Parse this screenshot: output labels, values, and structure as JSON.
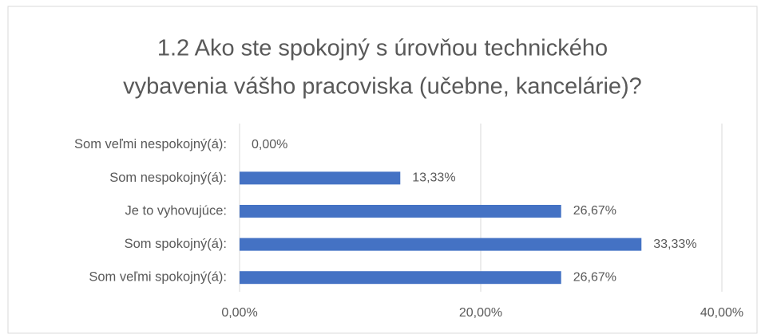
{
  "chart_data": {
    "type": "barh",
    "title": [
      "1.2 Ako ste spokojný s úrovňou technického",
      "vybavenia vášho pracoviska (učebne, kancelárie)?"
    ],
    "categories": [
      "Som veľmi nespokojný(á):",
      "Som nespokojný(á):",
      "Je to vyhovujúce:",
      "Som spokojný(á):",
      "Som veľmi spokojný(á):"
    ],
    "values": [
      0,
      13.33,
      26.67,
      33.33,
      26.67
    ],
    "value_labels": [
      "0,00%",
      "13,33%",
      "26,67%",
      "33,33%",
      "26,67%"
    ],
    "color": "#4472c4",
    "xlim": [
      0,
      40
    ],
    "xticks": [
      {
        "value": 0,
        "label": "0,00%"
      },
      {
        "value": 20,
        "label": "20,00%"
      },
      {
        "value": 40,
        "label": "40,00%"
      }
    ],
    "grid": true
  }
}
